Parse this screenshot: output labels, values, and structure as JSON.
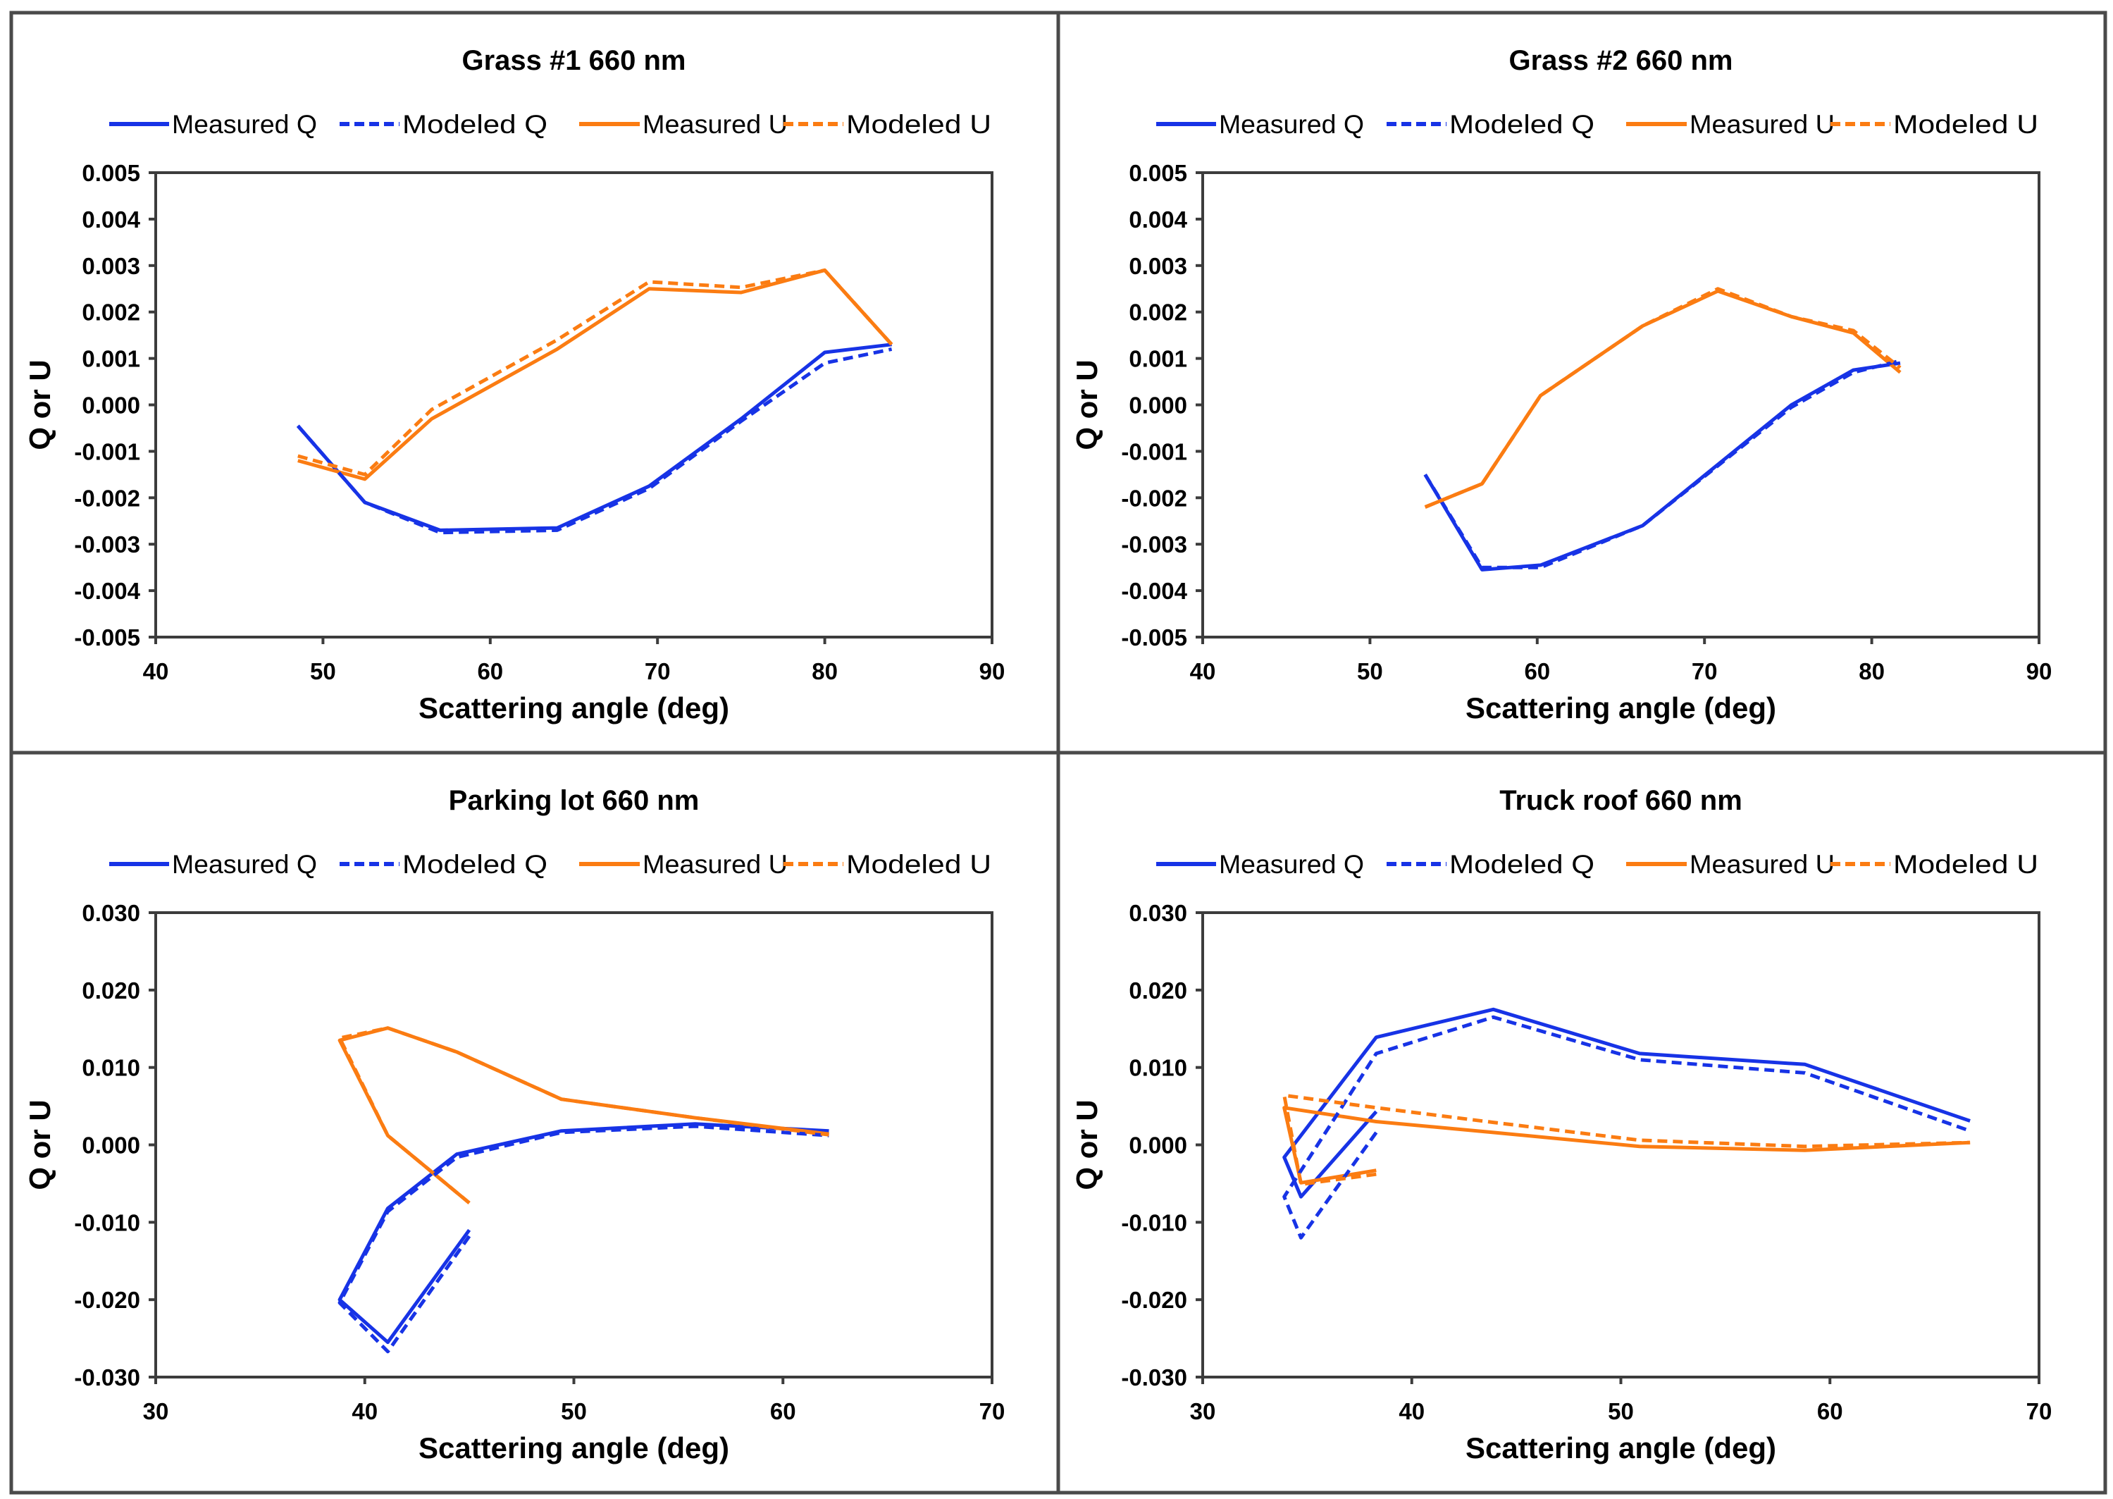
{
  "colors": {
    "q": "#1733e6",
    "u": "#fb7c12"
  },
  "chart_data": [
    {
      "type": "line",
      "title": "Grass #1 660 nm",
      "xlabel": "Scattering angle (deg)",
      "ylabel": "Q or U",
      "xlim": [
        40,
        90
      ],
      "ylim": [
        -0.005,
        0.005
      ],
      "xticks": [
        "40",
        "50",
        "60",
        "70",
        "80",
        "90"
      ],
      "yticks": [
        "0.005",
        "0.004",
        "0.003",
        "0.002",
        "0.001",
        "0.000",
        "-0.001",
        "-0.002",
        "-0.003",
        "-0.004",
        "-0.005"
      ],
      "legend": [
        "Measured Q",
        "Modeled Q",
        "Measured U",
        "Modeled U"
      ],
      "legend_position": "top",
      "grid": false,
      "series": [
        {
          "name": "Measured Q",
          "color_key": "q",
          "dashed": false,
          "x": [
            48.5,
            52.5,
            57.0,
            64.0,
            69.5,
            75.0,
            80.0,
            84.0
          ],
          "y": [
            -0.00045,
            -0.0021,
            -0.0027,
            -0.00265,
            -0.00175,
            -0.0003,
            0.00113,
            0.0013
          ]
        },
        {
          "name": "Modeled Q",
          "color_key": "q",
          "dashed": true,
          "x": [
            48.5,
            52.5,
            57.0,
            64.0,
            69.5,
            75.0,
            80.0,
            84.0
          ],
          "y": [
            -0.00045,
            -0.0021,
            -0.00275,
            -0.0027,
            -0.0018,
            -0.00035,
            0.0009,
            0.0012
          ]
        },
        {
          "name": "Measured U",
          "color_key": "u",
          "dashed": false,
          "x": [
            48.5,
            52.5,
            56.5,
            64.0,
            69.5,
            75.0,
            80.0,
            84.0
          ],
          "y": [
            -0.0012,
            -0.0016,
            -0.0003,
            0.0012,
            0.0025,
            0.00242,
            0.0029,
            0.0013
          ]
        },
        {
          "name": "Modeled U",
          "color_key": "u",
          "dashed": true,
          "x": [
            48.5,
            52.5,
            56.5,
            64.0,
            69.5,
            75.0,
            80.0,
            84.0
          ],
          "y": [
            -0.0011,
            -0.0015,
            -0.0001,
            0.0014,
            0.00265,
            0.00253,
            0.0029,
            0.0013
          ]
        }
      ]
    },
    {
      "type": "line",
      "title": "Grass #2 660 nm",
      "xlabel": "Scattering angle (deg)",
      "ylabel": "Q or U",
      "xlim": [
        40,
        90
      ],
      "ylim": [
        -0.005,
        0.005
      ],
      "xticks": [
        "40",
        "50",
        "60",
        "70",
        "80",
        "90"
      ],
      "yticks": [
        "0.005",
        "0.004",
        "0.003",
        "0.002",
        "0.001",
        "0.000",
        "-0.001",
        "-0.002",
        "-0.003",
        "-0.004",
        "-0.005"
      ],
      "legend": [
        "Measured Q",
        "Modeled Q",
        "Measured U",
        "Modeled U"
      ],
      "legend_position": "top",
      "grid": false,
      "series": [
        {
          "name": "Measured Q",
          "color_key": "q",
          "dashed": false,
          "x": [
            53.3,
            56.7,
            60.2,
            66.3,
            75.2,
            78.9,
            81.7
          ],
          "y": [
            -0.0015,
            -0.00355,
            -0.00345,
            -0.0026,
            0.0,
            0.00075,
            0.0009
          ]
        },
        {
          "name": "Modeled Q",
          "color_key": "q",
          "dashed": true,
          "x": [
            53.3,
            56.7,
            60.2,
            66.3,
            75.2,
            78.9,
            81.7
          ],
          "y": [
            -0.0015,
            -0.0035,
            -0.0035,
            -0.0026,
            -5e-05,
            0.0007,
            0.00095
          ]
        },
        {
          "name": "Measured U",
          "color_key": "u",
          "dashed": false,
          "x": [
            53.3,
            56.7,
            60.2,
            66.3,
            70.8,
            75.2,
            78.9,
            81.7
          ],
          "y": [
            -0.0022,
            -0.0017,
            0.0002,
            0.0017,
            0.00245,
            0.0019,
            0.00155,
            0.0007
          ]
        },
        {
          "name": "Modeled U",
          "color_key": "u",
          "dashed": true,
          "x": [
            53.3,
            56.7,
            60.2,
            66.3,
            70.8,
            75.2,
            78.9,
            81.7
          ],
          "y": [
            -0.0022,
            -0.0017,
            0.0002,
            0.0017,
            0.0025,
            0.0019,
            0.0016,
            0.0008
          ]
        }
      ]
    },
    {
      "type": "line",
      "title": "Parking lot 660 nm",
      "xlabel": "Scattering angle (deg)",
      "ylabel": "Q or U",
      "xlim": [
        30,
        70
      ],
      "ylim": [
        -0.03,
        0.03
      ],
      "xticks": [
        "30",
        "40",
        "50",
        "60",
        "70"
      ],
      "yticks": [
        "0.030",
        "0.020",
        "0.010",
        "0.000",
        "-0.010",
        "-0.020",
        "-0.030"
      ],
      "legend": [
        "Measured Q",
        "Modeled Q",
        "Measured U",
        "Modeled U"
      ],
      "legend_position": "top",
      "grid": false,
      "series": [
        {
          "name": "Measured Q",
          "color_key": "q",
          "dashed": false,
          "x": [
            45.0,
            41.1,
            38.8,
            41.1,
            44.4,
            49.4,
            55.8,
            62.2
          ],
          "y": [
            -0.011,
            -0.0255,
            -0.02,
            -0.0082,
            -0.0012,
            0.0018,
            0.0027,
            0.0018
          ]
        },
        {
          "name": "Modeled Q",
          "color_key": "q",
          "dashed": true,
          "x": [
            45.0,
            41.1,
            38.8,
            41.1,
            44.4,
            49.4,
            55.8,
            62.2
          ],
          "y": [
            -0.0118,
            -0.0267,
            -0.0204,
            -0.0086,
            -0.0016,
            0.0016,
            0.0024,
            0.0012
          ]
        },
        {
          "name": "Measured U",
          "color_key": "u",
          "dashed": false,
          "x": [
            45.0,
            41.1,
            38.8,
            41.1,
            44.4,
            49.4,
            55.8,
            62.2
          ],
          "y": [
            -0.0075,
            0.0012,
            0.0135,
            0.0151,
            0.012,
            0.0059,
            0.0035,
            0.0014
          ]
        },
        {
          "name": "Modeled U",
          "color_key": "u",
          "dashed": true,
          "x": [
            45.0,
            41.1,
            38.8,
            41.1,
            44.4,
            49.4,
            55.8,
            62.2
          ],
          "y": [
            -0.0075,
            0.0012,
            0.0138,
            0.0151,
            0.012,
            0.0059,
            0.0035,
            0.0013
          ]
        }
      ]
    },
    {
      "type": "line",
      "title": "Truck roof 660 nm",
      "xlabel": "Scattering angle (deg)",
      "ylabel": "Q or U",
      "xlim": [
        30,
        70
      ],
      "ylim": [
        -0.03,
        0.03
      ],
      "xticks": [
        "30",
        "40",
        "50",
        "60",
        "70"
      ],
      "yticks": [
        "0.030",
        "0.020",
        "0.010",
        "0.000",
        "-0.010",
        "-0.020",
        "-0.030"
      ],
      "legend": [
        "Measured Q",
        "Modeled Q",
        "Measured U",
        "Modeled U"
      ],
      "legend_position": "top",
      "grid": false,
      "series": [
        {
          "name": "Measured Q",
          "color_key": "q",
          "dashed": false,
          "x": [
            38.3,
            34.7,
            33.9,
            38.3,
            43.9,
            50.9,
            58.8,
            66.7
          ],
          "y": [
            0.0043,
            -0.0067,
            -0.0016,
            0.0139,
            0.0175,
            0.0118,
            0.0104,
            0.0031
          ]
        },
        {
          "name": "Modeled Q",
          "color_key": "q",
          "dashed": true,
          "x": [
            38.3,
            34.7,
            33.9,
            38.3,
            43.9,
            50.9,
            58.8,
            66.7
          ],
          "y": [
            0.0016,
            -0.012,
            -0.0067,
            0.0118,
            0.0165,
            0.011,
            0.0093,
            0.0018
          ]
        },
        {
          "name": "Measured U",
          "color_key": "u",
          "dashed": false,
          "x": [
            38.3,
            34.7,
            33.9,
            38.3,
            43.9,
            50.9,
            58.8,
            66.7
          ],
          "y": [
            -0.0033,
            -0.0049,
            0.0048,
            0.003,
            0.0016,
            -0.0002,
            -0.0007,
            0.0003
          ]
        },
        {
          "name": "Modeled U",
          "color_key": "u",
          "dashed": true,
          "x": [
            38.3,
            34.7,
            33.9,
            38.3,
            43.9,
            50.9,
            58.8,
            66.7
          ],
          "y": [
            -0.0038,
            -0.0051,
            0.0064,
            0.0048,
            0.0029,
            0.0006,
            -0.0002,
            0.0003
          ]
        }
      ]
    }
  ]
}
